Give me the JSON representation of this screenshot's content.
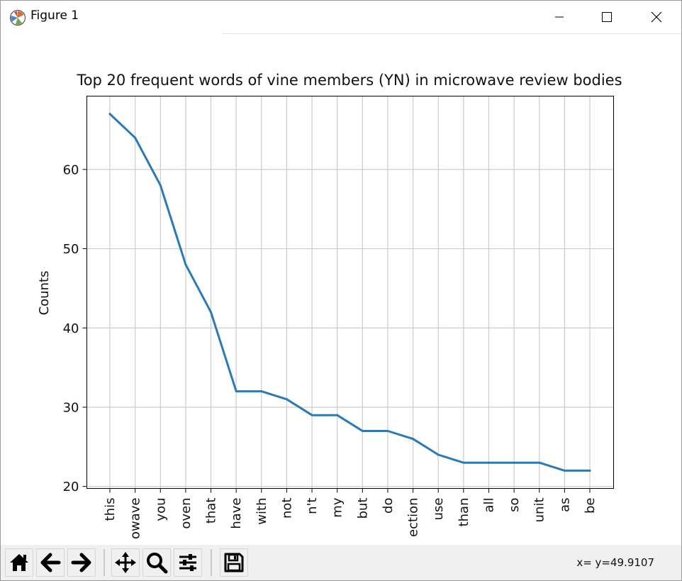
{
  "window": {
    "title": "Figure 1",
    "icon": "matplotlib-icon",
    "controls": [
      "minimize-icon",
      "maximize-icon",
      "close-icon"
    ]
  },
  "toolbar": {
    "buttons": [
      "home-icon",
      "back-arrow-icon",
      "forward-arrow-icon",
      "pan-icon",
      "zoom-icon",
      "configure-subplots-icon",
      "save-icon"
    ],
    "coords": "x= y=49.9107"
  },
  "chart_data": {
    "type": "line",
    "title": "Top 20 frequent words of vine members (YN) in microwave review bodies",
    "xlabel": "",
    "ylabel": "Counts",
    "categories": [
      "this",
      "microwave",
      "you",
      "oven",
      "that",
      "have",
      "with",
      "not",
      "n't",
      "my",
      "but",
      "do",
      "section",
      "use",
      "than",
      "all",
      "so",
      "unit",
      "as",
      "be"
    ],
    "category_labels_shown": [
      "this",
      "owave",
      "you",
      "oven",
      "that",
      "have",
      "with",
      "not",
      "n't",
      "my",
      "but",
      "do",
      "ection",
      "use",
      "than",
      "all",
      "so",
      "unit",
      "as",
      "be"
    ],
    "series": [
      {
        "values": [
          67,
          64,
          58,
          48,
          42,
          32,
          32,
          31,
          29,
          29,
          27,
          27,
          26,
          24,
          23,
          23,
          23,
          23,
          22,
          22
        ]
      }
    ],
    "ylim": [
      19.75,
      69.25
    ],
    "yticks": [
      20,
      30,
      40,
      50,
      60
    ],
    "grid": true,
    "line_color": "#2a7ab8"
  }
}
